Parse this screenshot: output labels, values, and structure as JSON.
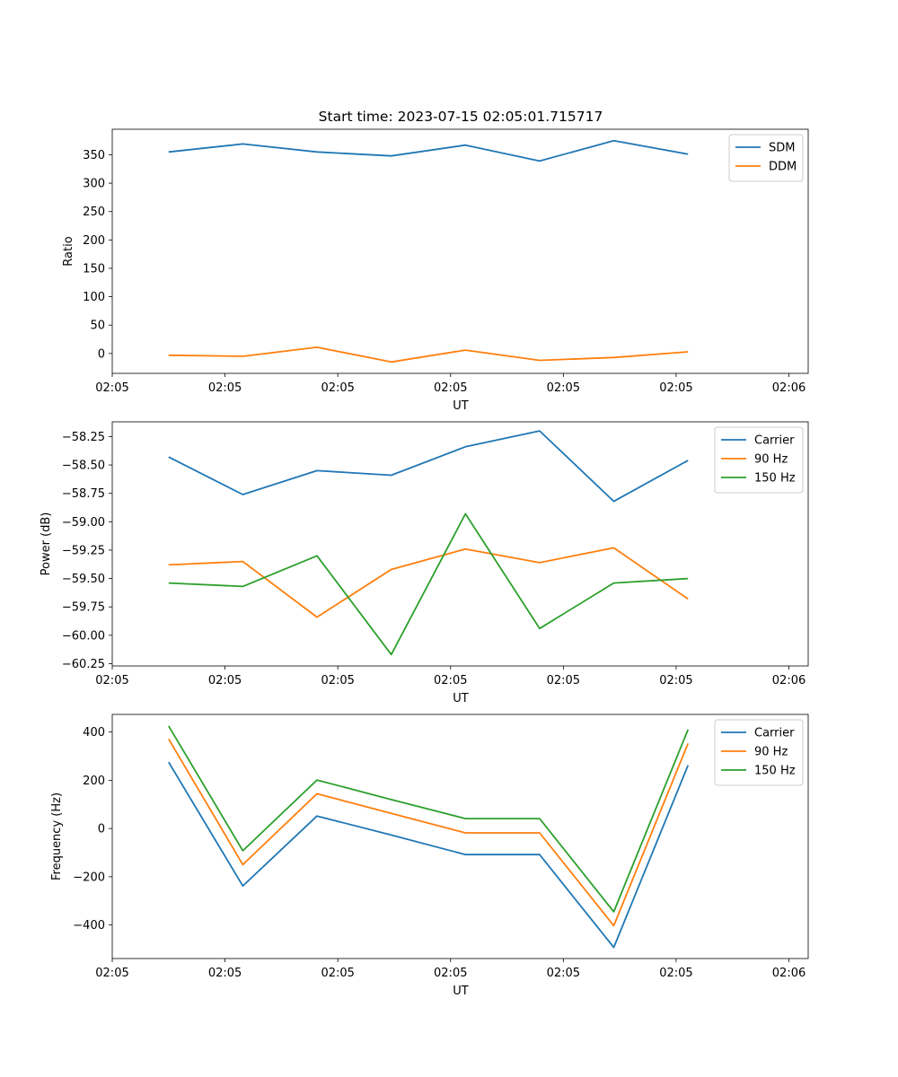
{
  "chart_data": [
    {
      "type": "line",
      "title": "Start time: 2023-07-15 02:05:01.715717",
      "xlabel": "UT",
      "ylabel": "Ratio",
      "x": [
        0,
        1,
        2,
        3,
        4,
        5,
        6,
        7
      ],
      "xlim": [
        -0.76,
        8.62
      ],
      "xticks": [
        -0.76,
        0.76,
        2.28,
        3.8,
        5.32,
        6.84,
        8.36
      ],
      "xtick_labels": [
        "02:05",
        "02:05",
        "02:05",
        "02:05",
        "02:05",
        "02:05",
        "02:06"
      ],
      "ylim": [
        -35,
        395
      ],
      "yticks": [
        0,
        50,
        100,
        150,
        200,
        250,
        300,
        350
      ],
      "ytick_labels": [
        "0",
        "50",
        "100",
        "150",
        "200",
        "250",
        "300",
        "350"
      ],
      "legend_position": "top-right",
      "series": [
        {
          "name": "SDM",
          "color": "#1f77b4",
          "values": [
            355,
            369,
            355,
            348,
            367,
            339,
            375,
            351
          ]
        },
        {
          "name": "DDM",
          "color": "#ff7f0e",
          "values": [
            -3,
            -5,
            11,
            -15,
            6,
            -12,
            -7,
            3
          ]
        }
      ]
    },
    {
      "type": "line",
      "title": "",
      "xlabel": "UT",
      "ylabel": "Power (dB)",
      "x": [
        0,
        1,
        2,
        3,
        4,
        5,
        6,
        7
      ],
      "xlim": [
        -0.76,
        8.62
      ],
      "xticks": [
        -0.76,
        0.76,
        2.28,
        3.8,
        5.32,
        6.84,
        8.36
      ],
      "xtick_labels": [
        "02:05",
        "02:05",
        "02:05",
        "02:05",
        "02:05",
        "02:05",
        "02:06"
      ],
      "ylim": [
        -60.27,
        -58.12
      ],
      "yticks": [
        -60.25,
        -60.0,
        -59.75,
        -59.5,
        -59.25,
        -59.0,
        -58.75,
        -58.5,
        -58.25
      ],
      "ytick_labels": [
        "−60.25",
        "−60.00",
        "−59.75",
        "−59.50",
        "−59.25",
        "−59.00",
        "−58.75",
        "−58.50",
        "−58.25"
      ],
      "legend_position": "top-right",
      "series": [
        {
          "name": "Carrier",
          "color": "#1f77b4",
          "values": [
            -58.43,
            -58.76,
            -58.55,
            -58.59,
            -58.34,
            -58.2,
            -58.82,
            -58.46
          ]
        },
        {
          "name": "90 Hz",
          "color": "#ff7f0e",
          "values": [
            -59.38,
            -59.35,
            -59.84,
            -59.42,
            -59.24,
            -59.36,
            -59.23,
            -59.68
          ]
        },
        {
          "name": "150 Hz",
          "color": "#2ca02c",
          "values": [
            -59.54,
            -59.57,
            -59.3,
            -60.17,
            -58.93,
            -59.94,
            -59.54,
            -59.5
          ]
        }
      ]
    },
    {
      "type": "line",
      "title": "",
      "xlabel": "UT",
      "ylabel": "Frequency (Hz)",
      "x": [
        0,
        1,
        2,
        3,
        4,
        5,
        6,
        7
      ],
      "xlim": [
        -0.76,
        8.62
      ],
      "xticks": [
        -0.76,
        0.76,
        2.28,
        3.8,
        5.32,
        6.84,
        8.36
      ],
      "xtick_labels": [
        "02:05",
        "02:05",
        "02:05",
        "02:05",
        "02:05",
        "02:05",
        "02:06"
      ],
      "ylim": [
        -539,
        473
      ],
      "yticks": [
        -400,
        -200,
        0,
        200,
        400
      ],
      "ytick_labels": [
        "−400",
        "−200",
        "0",
        "200",
        "400"
      ],
      "legend_position": "top-right",
      "series": [
        {
          "name": "Carrier",
          "color": "#1f77b4",
          "values": [
            275,
            -238,
            52,
            -27,
            -108,
            -108,
            -493,
            262
          ]
        },
        {
          "name": "90 Hz",
          "color": "#ff7f0e",
          "values": [
            371,
            -150,
            144,
            63,
            -18,
            -18,
            -403,
            353
          ]
        },
        {
          "name": "150 Hz",
          "color": "#2ca02c",
          "values": [
            425,
            -92,
            201,
            120,
            41,
            41,
            -345,
            410
          ]
        }
      ]
    }
  ]
}
